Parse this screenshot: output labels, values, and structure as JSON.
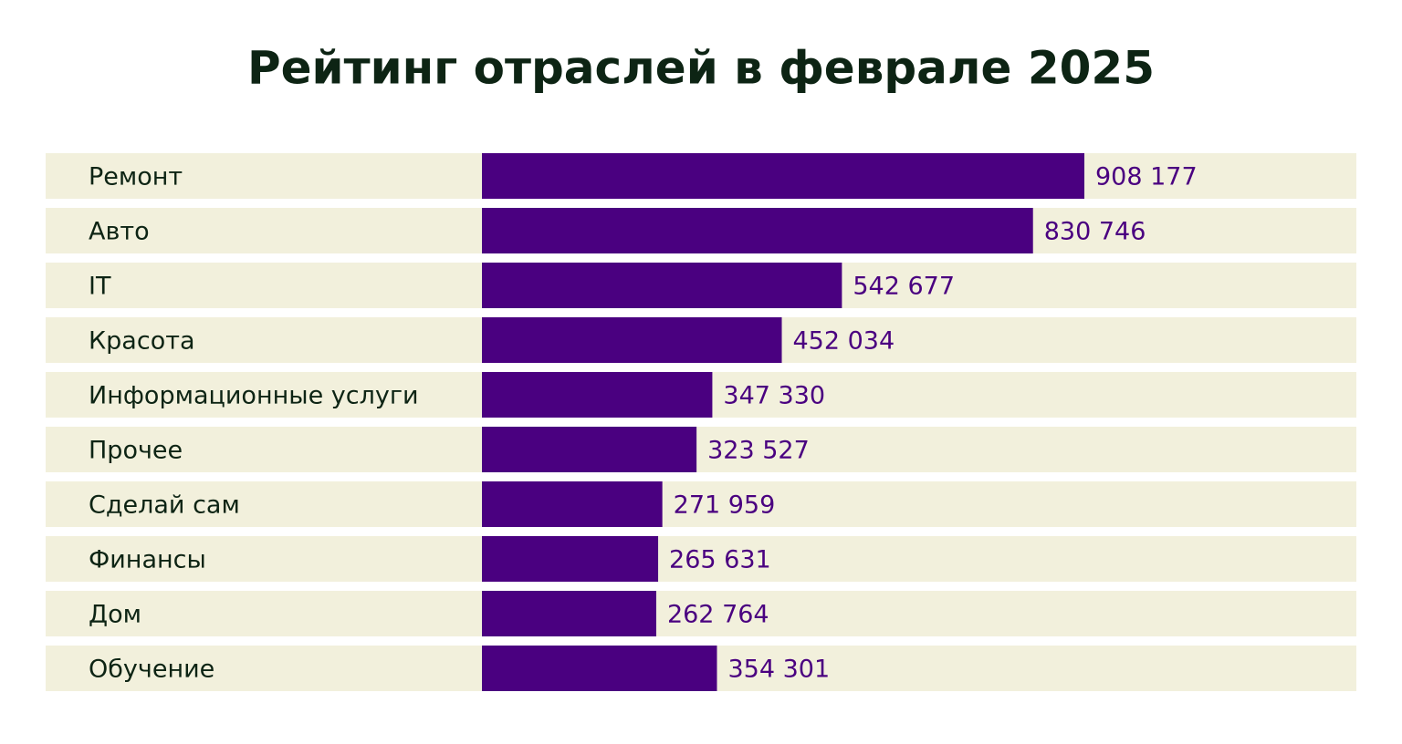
{
  "chart_data": {
    "type": "barh",
    "title": "Рейтинг отраслей в феврале 2025",
    "categories": [
      "Ремонт",
      "Авто",
      "IT",
      "Красота",
      "Информационные услуги",
      "Прочее",
      "Сделай сам",
      "Финансы",
      "Дом",
      "Обучение"
    ],
    "values": [
      908177,
      830746,
      542677,
      452034,
      347330,
      323527,
      271959,
      265631,
      262764,
      354301
    ],
    "value_labels": [
      "908 177",
      "830 746",
      "542 677",
      "452 034",
      "347 330",
      "323 527",
      "271 959",
      "265 631",
      "262 764",
      "354 301"
    ],
    "color": "#4a0080",
    "label_color": "#4a0080",
    "row_color": "#f2f0dc"
  }
}
